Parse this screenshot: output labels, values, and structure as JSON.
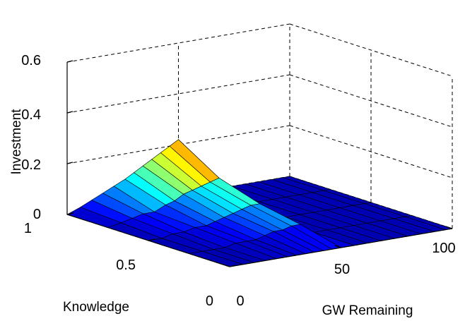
{
  "chart_data": {
    "type": "surface",
    "title": "",
    "xlabel": "GW Remaining",
    "ylabel": "Knowledge",
    "zlabel": "Investment",
    "xlim": [
      0,
      100
    ],
    "ylim": [
      0,
      1
    ],
    "zlim": [
      0,
      0.6
    ],
    "x_ticks": [
      "0",
      "50",
      "100"
    ],
    "y_ticks": [
      "0",
      "0.5",
      "1"
    ],
    "z_ticks": [
      "0",
      "0.2",
      "0.4",
      "0.6"
    ],
    "grid": true,
    "colormap": "jet",
    "knowledge_samples": [
      1.0,
      0.75,
      0.5,
      0.25,
      0.0
    ],
    "profile_along_gw": {
      "gw_remaining": [
        0,
        6,
        11,
        16,
        21,
        26,
        30,
        34,
        38,
        42,
        46,
        50
      ],
      "investment_at_knowledge_1": [
        0.0,
        0.02,
        0.04,
        0.06,
        0.08,
        0.1,
        0.12,
        0.14,
        0.16,
        0.18,
        0.2,
        0.22
      ],
      "investment_at_knowledge_0_75": [
        0.0,
        0.01,
        0.02,
        0.03,
        0.03,
        0.05,
        0.06,
        0.08,
        0.09,
        0.1,
        0.11,
        0.12
      ],
      "investment_at_knowledge_0_5": [
        0.0,
        0.0,
        0.01,
        0.01,
        0.02,
        0.02,
        0.03,
        0.04,
        0.05,
        0.06,
        0.07,
        0.07
      ],
      "investment_at_knowledge_0_25": [
        0.0,
        0.0,
        0.0,
        0.0,
        0.01,
        0.01,
        0.01,
        0.02,
        0.03,
        0.03,
        0.04,
        0.04
      ],
      "investment_at_knowledge_0": [
        0.0,
        0.0,
        0.0,
        0.0,
        0.0,
        0.0,
        0.0,
        0.0,
        0.0,
        0.0,
        0.0,
        0.0
      ]
    },
    "investment_beyond_gw_50": 0.0
  }
}
